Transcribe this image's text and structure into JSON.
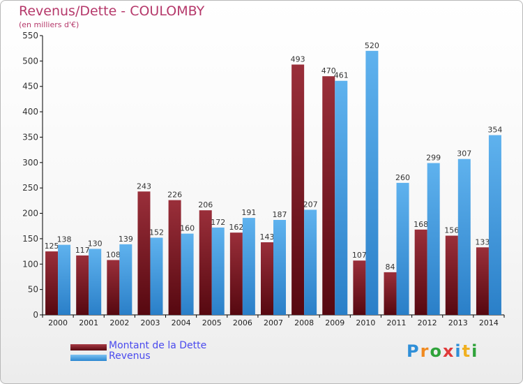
{
  "chart_data": {
    "type": "bar",
    "title": "Revenus/Dette - COULOMBY",
    "subtitle": "(en milliers d'€)",
    "categories": [
      "2000",
      "2001",
      "2002",
      "2003",
      "2004",
      "2005",
      "2006",
      "2007",
      "2008",
      "2009",
      "2010",
      "2011",
      "2012",
      "2013",
      "2014"
    ],
    "series": [
      {
        "name": "Montant de la Dette",
        "color": "#7a1f28",
        "values": [
          125,
          117,
          108,
          243,
          226,
          206,
          162,
          143,
          493,
          470,
          107,
          84,
          168,
          156,
          133
        ]
      },
      {
        "name": "Revenus",
        "color": "#4aa3e6",
        "values": [
          138,
          130,
          139,
          152,
          160,
          172,
          191,
          187,
          207,
          461,
          520,
          260,
          299,
          307,
          354
        ]
      }
    ],
    "ylim": [
      0,
      550
    ],
    "yticks": [
      0,
      50,
      100,
      150,
      200,
      250,
      300,
      350,
      400,
      450,
      500,
      550
    ],
    "grid": false,
    "legend_position": "bottom-left"
  },
  "logo": {
    "letters": [
      "P",
      "r",
      "o",
      "x",
      "i",
      "t",
      "i"
    ],
    "colors": [
      "#2f8fd8",
      "#f08a20",
      "#2fa33a",
      "#e03a3a",
      "#2f8fd8",
      "#f0b020",
      "#2fa33a"
    ]
  }
}
